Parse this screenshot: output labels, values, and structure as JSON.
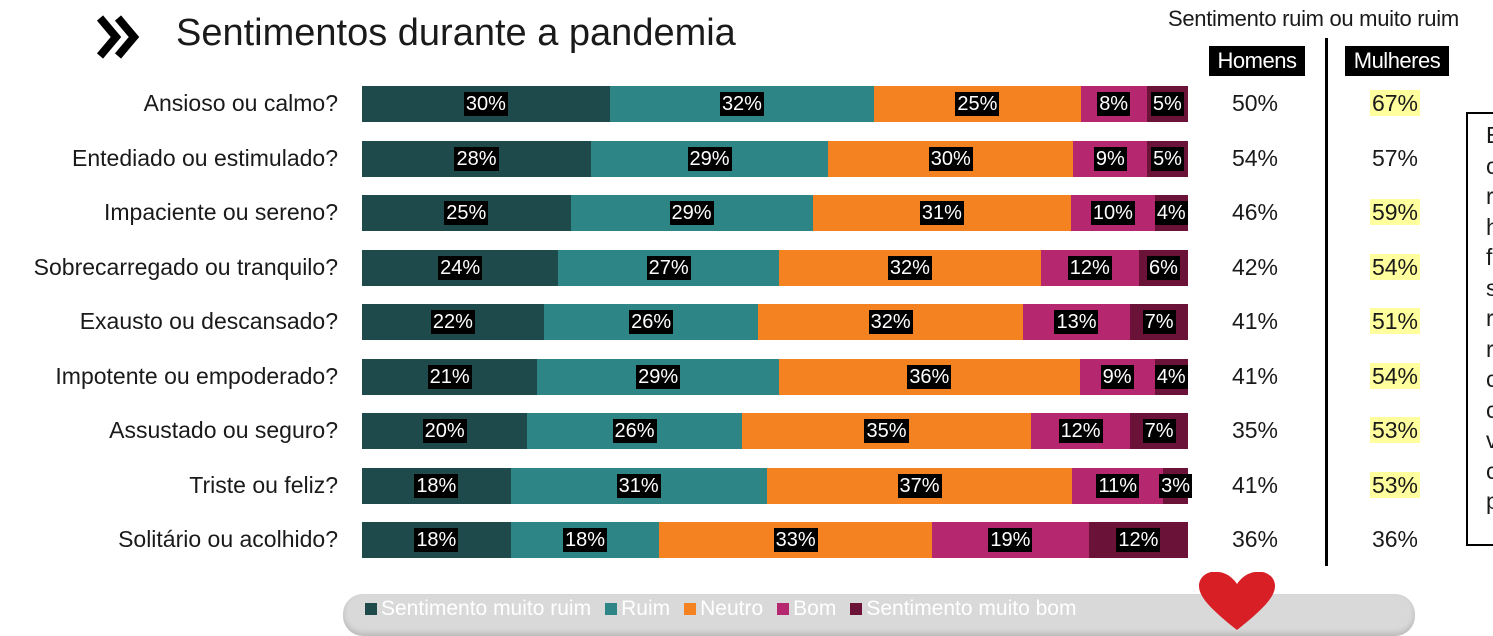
{
  "header": {
    "title": "Sentimentos durante a pandemia"
  },
  "summary": {
    "title": "Sentimento ruim ou muito ruim",
    "col_men": "Homens",
    "col_women": "Mulheres"
  },
  "colors": {
    "muito_ruim": "#1e4a4c",
    "ruim": "#2e8585",
    "neutro": "#f58220",
    "bom": "#b5286f",
    "muito_bom": "#6b1238",
    "highlight": "#ffff9e"
  },
  "chart_data": {
    "type": "bar",
    "orientation": "horizontal-stacked-100",
    "title": "Sentimentos durante a pandemia",
    "categories": [
      "Ansioso ou calmo?",
      "Entediado ou estimulado?",
      "Impaciente ou sereno?",
      "Sobrecarregado ou tranquilo?",
      "Exausto ou descansado?",
      "Impotente ou empoderado?",
      "Assustado ou seguro?",
      "Triste ou feliz?",
      "Solitário ou acolhido?"
    ],
    "series": [
      {
        "name": "Sentimento muito ruim",
        "color": "#1e4a4c",
        "values": [
          30,
          28,
          25,
          24,
          22,
          21,
          20,
          18,
          18
        ]
      },
      {
        "name": "Ruim",
        "color": "#2e8585",
        "values": [
          32,
          29,
          29,
          27,
          26,
          29,
          26,
          31,
          18
        ]
      },
      {
        "name": "Neutro",
        "color": "#f58220",
        "values": [
          25,
          30,
          31,
          32,
          32,
          36,
          35,
          37,
          33
        ]
      },
      {
        "name": "Bom",
        "color": "#b5286f",
        "values": [
          8,
          9,
          10,
          12,
          13,
          9,
          12,
          11,
          19
        ]
      },
      {
        "name": "Sentimento muito bom",
        "color": "#6b1238",
        "values": [
          5,
          5,
          4,
          6,
          7,
          4,
          7,
          3,
          12
        ]
      }
    ],
    "legend_position": "bottom",
    "summary_men": [
      "50%",
      "54%",
      "46%",
      "42%",
      "41%",
      "41%",
      "35%",
      "41%",
      "36%"
    ],
    "summary_women": [
      "67%",
      "57%",
      "59%",
      "54%",
      "51%",
      "54%",
      "53%",
      "53%",
      "36%"
    ],
    "summary_women_highlighted": [
      true,
      false,
      true,
      true,
      true,
      true,
      true,
      true,
      false
    ]
  },
  "note": {
    "visible_letters": [
      "E",
      "c",
      "r",
      "h",
      "f",
      "s",
      "r",
      "r",
      "c",
      "c",
      "v",
      "c",
      "p"
    ]
  }
}
